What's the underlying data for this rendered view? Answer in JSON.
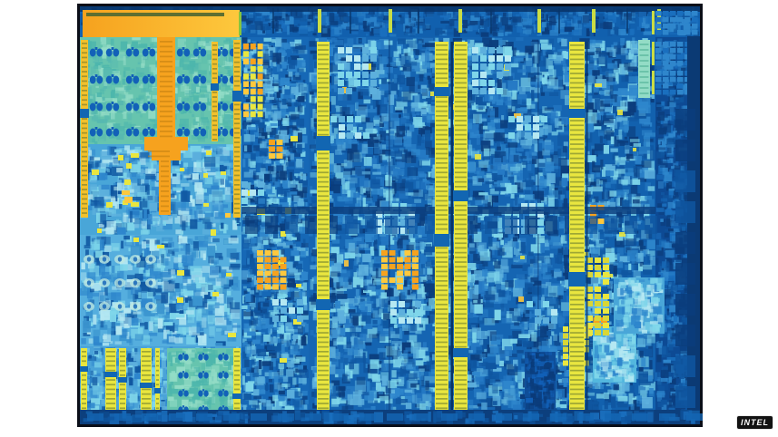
{
  "watermark": {
    "text": "INTEL",
    "fg": "#ffffff",
    "bg": "#121212"
  },
  "palette": {
    "page_bg": "#ffffff",
    "die_border": "#0a0e18",
    "die_base": "#0f4e99",
    "navy": "#0b3d7c",
    "deep_blue": "#0f56a0",
    "blue": "#1a6fbe",
    "mid_blue": "#2e86cc",
    "light_blue": "#5db0dd",
    "cyan": "#7fd6ea",
    "pale_cyan": "#b5e8f2",
    "teal": "#66c4ae",
    "teal_light": "#93dcc6",
    "butterfly": "#1261b8",
    "yellow": "#e9e63f",
    "yellow_dim": "#d9d636",
    "yellow_green": "#cadd44",
    "orange": "#f6a21e",
    "orange_light": "#fdc83d",
    "orange_yellow": "#f2c12c",
    "olive": "#5e6f31",
    "green": "#86c43e",
    "stripe_dash": "#53682a",
    "dark_line": "#083468"
  }
}
